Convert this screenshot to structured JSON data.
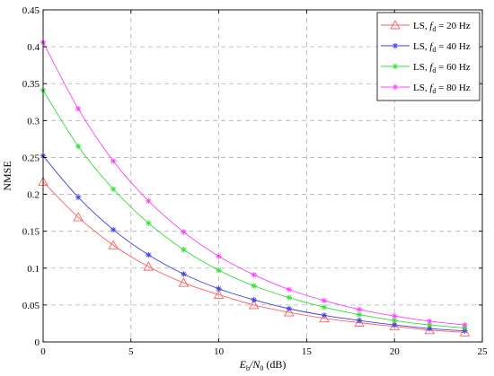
{
  "chart_data": {
    "type": "line",
    "title": "",
    "xlabel": {
      "main": "E",
      "sub1": "b",
      "mid": "/N",
      "sub2": "0",
      "unit": " (dB)"
    },
    "ylabel": "NMSE",
    "xlim": [
      0,
      25
    ],
    "ylim": [
      0,
      0.45
    ],
    "xticks": [
      0,
      5,
      10,
      15,
      20,
      25
    ],
    "yticks": [
      0,
      0.05,
      0.1,
      0.15,
      0.2,
      0.25,
      0.3,
      0.35,
      0.4,
      0.45
    ],
    "xtick_labels": [
      "0",
      "5",
      "10",
      "15",
      "20",
      "25"
    ],
    "ytick_labels": [
      "0",
      "0.05",
      "0.1",
      "0.15",
      "0.2",
      "0.25",
      "0.3",
      "0.35",
      "0.4",
      "0.45"
    ],
    "grid": true,
    "legend_position": "top-right",
    "x": [
      0,
      2,
      4,
      6,
      8,
      10,
      12,
      14,
      16,
      18,
      20,
      22,
      24
    ],
    "series": [
      {
        "name": "LS, f_d = 20 Hz",
        "legend": {
          "pre": "LS, ",
          "f": "f",
          "sub": "d",
          "post": " = 20 Hz"
        },
        "color": "#ff6060",
        "marker": "triangle",
        "values": [
          0.217,
          0.169,
          0.131,
          0.102,
          0.08,
          0.064,
          0.05,
          0.04,
          0.032,
          0.026,
          0.021,
          0.016,
          0.013
        ]
      },
      {
        "name": "LS, f_d = 40 Hz",
        "legend": {
          "pre": "LS, ",
          "f": "f",
          "sub": "d",
          "post": " = 40 Hz"
        },
        "color": "#4040e0",
        "marker": "star",
        "values": [
          0.252,
          0.196,
          0.152,
          0.118,
          0.092,
          0.072,
          0.057,
          0.045,
          0.036,
          0.029,
          0.023,
          0.018,
          0.015
        ]
      },
      {
        "name": "LS, f_d = 60 Hz",
        "legend": {
          "pre": "LS, ",
          "f": "f",
          "sub": "d",
          "post": " = 60 Hz"
        },
        "color": "#30e030",
        "marker": "star",
        "values": [
          0.341,
          0.265,
          0.207,
          0.161,
          0.125,
          0.097,
          0.076,
          0.06,
          0.047,
          0.037,
          0.029,
          0.023,
          0.019
        ]
      },
      {
        "name": "LS, f_d = 80 Hz",
        "legend": {
          "pre": "LS, ",
          "f": "f",
          "sub": "d",
          "post": " = 80 Hz"
        },
        "color": "#ff40ff",
        "marker": "star",
        "values": [
          0.406,
          0.316,
          0.245,
          0.191,
          0.149,
          0.116,
          0.091,
          0.071,
          0.056,
          0.044,
          0.035,
          0.028,
          0.023
        ]
      }
    ]
  }
}
